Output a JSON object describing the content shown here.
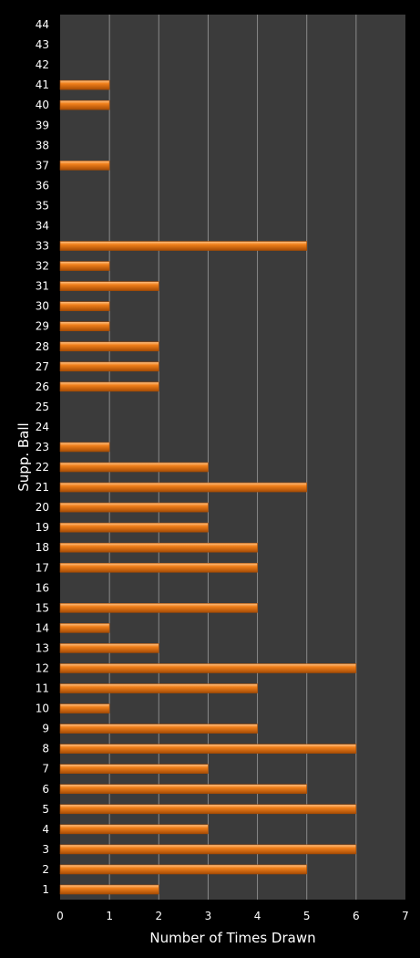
{
  "chart_data": {
    "type": "bar",
    "orientation": "horizontal",
    "xlabel": "Number of Times Drawn",
    "ylabel": "Supp. Ball",
    "xlim": [
      0,
      7
    ],
    "xticks": [
      0,
      1,
      2,
      3,
      4,
      5,
      6,
      7
    ],
    "grid": "vertical",
    "legend": "none",
    "categories": [
      "1",
      "2",
      "3",
      "4",
      "5",
      "6",
      "7",
      "8",
      "9",
      "10",
      "11",
      "12",
      "13",
      "14",
      "15",
      "16",
      "17",
      "18",
      "19",
      "20",
      "21",
      "22",
      "23",
      "24",
      "25",
      "26",
      "27",
      "28",
      "29",
      "30",
      "31",
      "32",
      "33",
      "34",
      "35",
      "36",
      "37",
      "38",
      "39",
      "40",
      "41",
      "42",
      "43",
      "44"
    ],
    "values": [
      2,
      5,
      6,
      3,
      6,
      5,
      3,
      6,
      4,
      1,
      4,
      6,
      2,
      1,
      4,
      0,
      4,
      4,
      3,
      3,
      5,
      3,
      1,
      0,
      0,
      2,
      2,
      2,
      1,
      1,
      2,
      1,
      5,
      0,
      0,
      0,
      1,
      0,
      0,
      1,
      1,
      0,
      0,
      0
    ],
    "colors": {
      "background": "#000000",
      "plot_area": "#3b3b3b",
      "gridline": "#8a8a8a",
      "bar": "#f07f1a",
      "bar_highlight": "#ffc58a",
      "bar_shadow": "#a64c05",
      "text": "#ffffff"
    }
  }
}
